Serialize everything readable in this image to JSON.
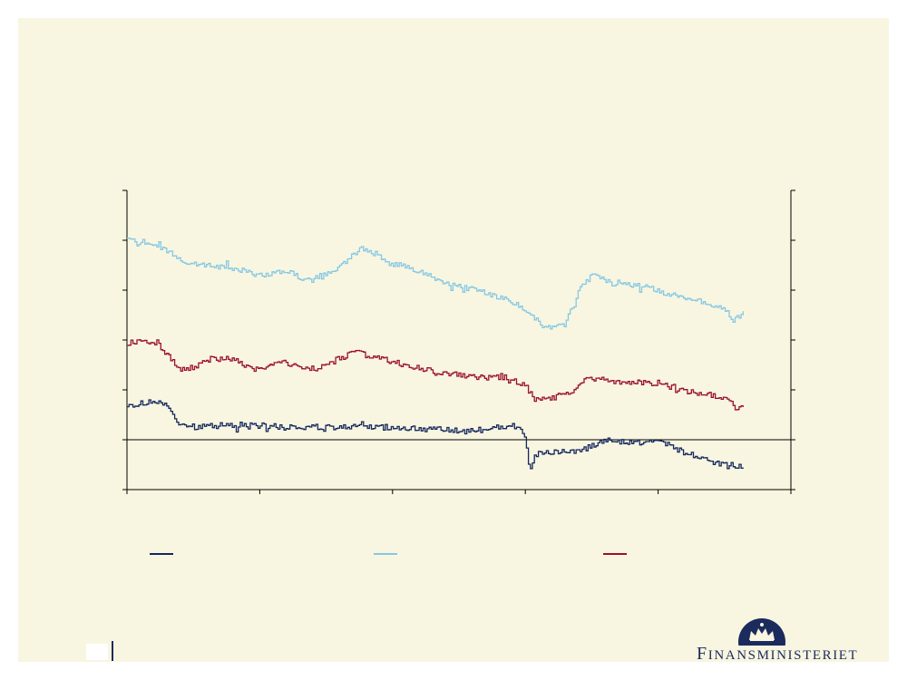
{
  "chart_data": {
    "type": "line",
    "x_count": 500,
    "ylim": [
      -1,
      5
    ],
    "y_ticks": [
      -1,
      0,
      1,
      2,
      3,
      4,
      5
    ],
    "x_ticks_count": 6,
    "series": [
      {
        "color": "#14275e",
        "anchors": [
          [
            0,
            0.72
          ],
          [
            10,
            0.7
          ],
          [
            25,
            0.78
          ],
          [
            40,
            0.68
          ],
          [
            50,
            0.35
          ],
          [
            60,
            0.25
          ],
          [
            80,
            0.28
          ],
          [
            120,
            0.3
          ],
          [
            160,
            0.25
          ],
          [
            200,
            0.25
          ],
          [
            260,
            0.25
          ],
          [
            300,
            0.22
          ],
          [
            340,
            0.16
          ],
          [
            370,
            0.24
          ],
          [
            390,
            0.28
          ],
          [
            300,
            0.22
          ]
        ],
        "segments": [
          [
            [
              0,
              0.72
            ],
            [
              10,
              0.7
            ],
            [
              25,
              0.78
            ],
            [
              40,
              0.68
            ],
            [
              50,
              0.35
            ],
            [
              60,
              0.25
            ],
            [
              80,
              0.28
            ],
            [
              120,
              0.3
            ],
            [
              160,
              0.25
            ],
            [
              200,
              0.25
            ],
            [
              260,
              0.25
            ],
            [
              300,
              0.22
            ],
            [
              340,
              0.16
            ],
            [
              370,
              0.24
            ],
            [
              392,
              0.28
            ],
            [
              400,
              0.05
            ],
            [
              405,
              -0.6
            ],
            [
              410,
              -0.3
            ],
            [
              430,
              -0.25
            ],
            [
              460,
              -0.2
            ],
            [
              480,
              0.0
            ],
            [
              500,
              -0.05
            ],
            [
              540,
              -0.05
            ],
            [
              560,
              -0.25
            ],
            [
              580,
              -0.4
            ],
            [
              600,
              -0.5
            ],
            [
              620,
              -0.52
            ]
          ]
        ],
        "noise": 0.06
      },
      {
        "color": "#86c8e4",
        "segments": [
          [
            [
              0,
              4.05
            ],
            [
              30,
              3.9
            ],
            [
              60,
              3.55
            ],
            [
              100,
              3.45
            ],
            [
              140,
              3.3
            ],
            [
              160,
              3.4
            ],
            [
              180,
              3.2
            ],
            [
              210,
              3.4
            ],
            [
              235,
              3.85
            ],
            [
              260,
              3.6
            ],
            [
              290,
              3.4
            ],
            [
              320,
              3.15
            ],
            [
              360,
              2.95
            ],
            [
              390,
              2.75
            ],
            [
              410,
              2.45
            ],
            [
              420,
              2.25
            ],
            [
              440,
              2.3
            ],
            [
              455,
              3.0
            ],
            [
              470,
              3.35
            ],
            [
              490,
              3.1
            ],
            [
              520,
              3.1
            ],
            [
              540,
              2.95
            ],
            [
              570,
              2.8
            ],
            [
              600,
              2.65
            ],
            [
              610,
              2.4
            ],
            [
              620,
              2.55
            ]
          ]
        ],
        "noise": 0.05
      },
      {
        "color": "#9b1030",
        "segments": [
          [
            [
              0,
              1.95
            ],
            [
              15,
              2.0
            ],
            [
              30,
              1.95
            ],
            [
              50,
              1.45
            ],
            [
              60,
              1.4
            ],
            [
              80,
              1.6
            ],
            [
              100,
              1.65
            ],
            [
              130,
              1.4
            ],
            [
              160,
              1.55
            ],
            [
              190,
              1.4
            ],
            [
              210,
              1.6
            ],
            [
              230,
              1.75
            ],
            [
              260,
              1.6
            ],
            [
              280,
              1.5
            ],
            [
              310,
              1.35
            ],
            [
              350,
              1.25
            ],
            [
              380,
              1.25
            ],
            [
              400,
              1.1
            ],
            [
              410,
              0.8
            ],
            [
              430,
              0.85
            ],
            [
              445,
              0.95
            ],
            [
              460,
              1.2
            ],
            [
              480,
              1.2
            ],
            [
              510,
              1.15
            ],
            [
              540,
              1.1
            ],
            [
              570,
              0.95
            ],
            [
              600,
              0.85
            ],
            [
              615,
              0.6
            ],
            [
              620,
              0.65
            ]
          ]
        ],
        "noise": 0.06
      }
    ],
    "legend": [
      {
        "color": "#14275e"
      },
      {
        "color": "#86c8e4"
      },
      {
        "color": "#9b1030"
      }
    ]
  },
  "branding": {
    "logo_name": "crown-icon",
    "brand_text": "Finansministeriet",
    "brand_initial": "F",
    "brand_rest": "INANSMINISTERIET",
    "brand_color": "#1b2b5e"
  }
}
